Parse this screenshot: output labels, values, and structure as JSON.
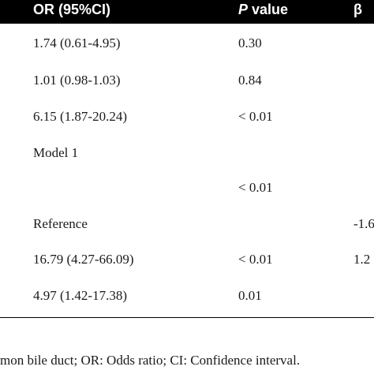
{
  "header": {
    "col_or": "OR (95%CI)",
    "col_p_italic": "P",
    "col_p_rest": " value",
    "col_beta": "β"
  },
  "rows": [
    {
      "or": "1.74 (0.61-4.95)",
      "p": "0.30",
      "beta": ""
    },
    {
      "or": "1.01 (0.98-1.03)",
      "p": "0.84",
      "beta": ""
    },
    {
      "or": "6.15 (1.87-20.24)",
      "p": "< 0.01",
      "beta": ""
    },
    {
      "or": "Model 1",
      "p": "",
      "beta": ""
    },
    {
      "or": "",
      "p": "< 0.01",
      "beta": ""
    },
    {
      "or": "Reference",
      "p": "",
      "beta": "-1.6"
    },
    {
      "or": "16.79 (4.27-66.09)",
      "p": "< 0.01",
      "beta": "1.2"
    },
    {
      "or": "4.97 (1.42-17.38)",
      "p": "0.01",
      "beta": ""
    }
  ],
  "footnote": "mon bile duct; OR: Odds ratio; CI: Confidence interval."
}
